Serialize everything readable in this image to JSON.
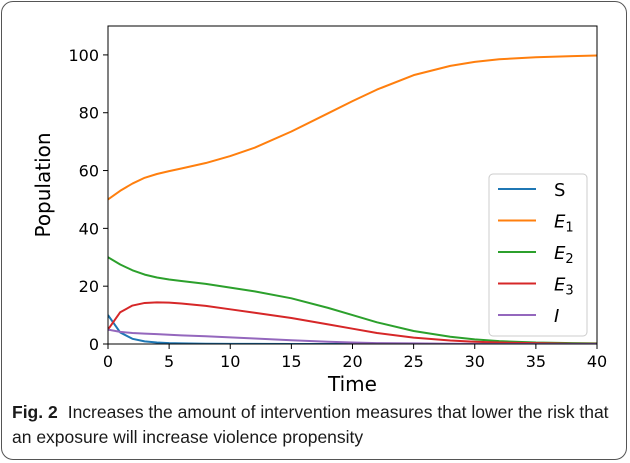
{
  "chart_data": {
    "type": "line",
    "xlabel": "Time",
    "ylabel": "Population",
    "xlim": [
      0,
      40
    ],
    "ylim": [
      0,
      110
    ],
    "xticks": [
      0,
      5,
      10,
      15,
      20,
      25,
      30,
      35,
      40
    ],
    "yticks": [
      0,
      20,
      40,
      60,
      80,
      100
    ],
    "grid": false,
    "legend_position": "right",
    "x": [
      0,
      1,
      2,
      3,
      4,
      5,
      6,
      8,
      10,
      12,
      15,
      18,
      20,
      22,
      25,
      28,
      30,
      32,
      35,
      38,
      40
    ],
    "series": [
      {
        "name": "S",
        "color": "#1f77b4",
        "values": [
          10,
          4,
          1.8,
          0.9,
          0.5,
          0.3,
          0.2,
          0.1,
          0.05,
          0.03,
          0.02,
          0.01,
          0,
          0,
          0,
          0,
          0,
          0,
          0,
          0,
          0
        ]
      },
      {
        "name": "E1",
        "color": "#ff7f0e",
        "values": [
          50,
          53,
          55.5,
          57.5,
          58.8,
          59.8,
          60.7,
          62.6,
          65,
          67.9,
          73.5,
          79.8,
          84,
          88,
          93,
          96.2,
          97.6,
          98.5,
          99.2,
          99.6,
          99.8
        ]
      },
      {
        "name": "E2",
        "color": "#2ca02c",
        "values": [
          30,
          27.5,
          25.5,
          24,
          23,
          22.3,
          21.8,
          20.8,
          19.5,
          18.2,
          15.8,
          12.5,
          10,
          7.5,
          4.5,
          2.5,
          1.6,
          1,
          0.5,
          0.3,
          0.2
        ]
      },
      {
        "name": "E3",
        "color": "#d62728",
        "values": [
          5,
          11,
          13.3,
          14.2,
          14.4,
          14.3,
          14,
          13.2,
          12,
          10.8,
          9,
          6.8,
          5.3,
          3.8,
          2.2,
          1.2,
          0.8,
          0.5,
          0.3,
          0.1,
          0.1
        ]
      },
      {
        "name": "I",
        "color": "#9467bd",
        "values": [
          5,
          4.2,
          3.8,
          3.6,
          3.4,
          3.2,
          3.0,
          2.7,
          2.3,
          1.9,
          1.3,
          0.8,
          0.5,
          0.3,
          0.2,
          0.1,
          0.05,
          0,
          0,
          0,
          0
        ]
      }
    ],
    "legend": [
      {
        "label": "S",
        "sub": "",
        "italic": false,
        "color": "#1f77b4"
      },
      {
        "label": "E",
        "sub": "1",
        "italic": true,
        "color": "#ff7f0e"
      },
      {
        "label": "E",
        "sub": "2",
        "italic": true,
        "color": "#2ca02c"
      },
      {
        "label": "E",
        "sub": "3",
        "italic": true,
        "color": "#d62728"
      },
      {
        "label": "I",
        "sub": "",
        "italic": true,
        "color": "#9467bd"
      }
    ]
  },
  "caption": {
    "label": "Fig. 2",
    "text": "Increases the amount of intervention measures that lower the risk that an exposure will increase violence propensity"
  }
}
